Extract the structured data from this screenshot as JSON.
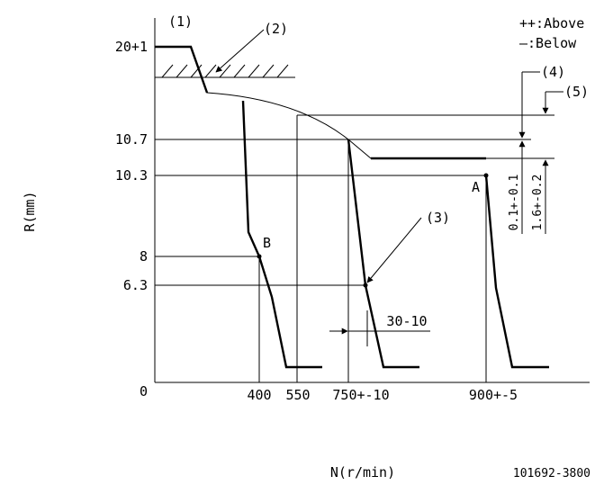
{
  "legend": {
    "above": "++:Above",
    "below": "—:Below"
  },
  "callouts": {
    "c1": "(1)",
    "c2": "(2)",
    "c3": "(3)",
    "c4": "(4)",
    "c5": "(5)"
  },
  "y_axis": {
    "title": "R(mm)",
    "ticks": [
      "20+1",
      "10.7",
      "10.3",
      "8",
      "6.3",
      "0"
    ]
  },
  "x_axis": {
    "title": "N(r/min)",
    "ticks": [
      "400",
      "550",
      "750+-10",
      "900+-5"
    ]
  },
  "points": {
    "a": "A",
    "b": "B"
  },
  "dimensions": {
    "d1": "0.1+-0.1",
    "d2": "1.6+-0.2",
    "d3": "30-10"
  },
  "part_number": "101692-3800"
}
